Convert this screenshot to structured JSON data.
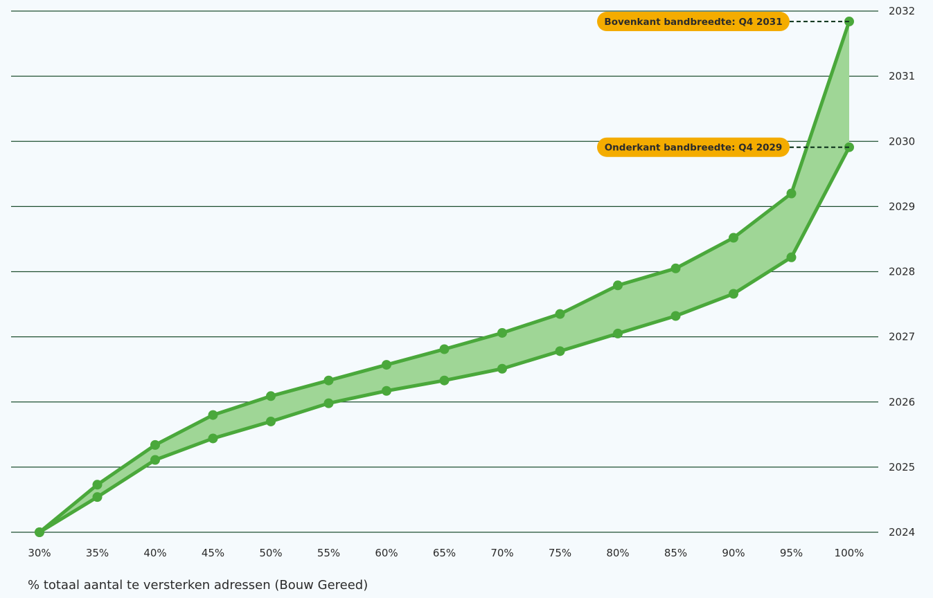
{
  "chart_data": {
    "type": "area",
    "xlabel": "% totaal aantal te versterken adressen (Bouw Gereed)",
    "ylabel": "",
    "x": [
      "30%",
      "35%",
      "40%",
      "45%",
      "50%",
      "55%",
      "60%",
      "65%",
      "70%",
      "75%",
      "80%",
      "85%",
      "90%",
      "95%",
      "100%"
    ],
    "ylim": [
      2024,
      2032
    ],
    "yticks": [
      "2024",
      "2025",
      "2026",
      "2027",
      "2028",
      "2029",
      "2030",
      "2031",
      "2032"
    ],
    "grid": "horizontal",
    "series": [
      {
        "values": [
          2024.0,
          2024.73,
          2025.34,
          2025.8,
          2026.09,
          2026.33,
          2026.57,
          2026.81,
          2027.06,
          2027.35,
          2027.79,
          2028.05,
          2028.52,
          2029.2,
          2031.84
        ]
      },
      {
        "values": [
          2024.0,
          2024.54,
          2025.11,
          2025.44,
          2025.7,
          2025.98,
          2026.17,
          2026.33,
          2026.51,
          2026.78,
          2027.05,
          2027.32,
          2027.66,
          2028.22,
          2029.91
        ]
      }
    ],
    "annotations": [
      {
        "text": "Bovenkant bandbreedte: Q4 2031",
        "y": 2031.84
      },
      {
        "text": "Onderkant bandbreedte: Q4 2029",
        "y": 2029.91
      }
    ],
    "colors": {
      "line": "#4aa83b",
      "fill": "#9fd696",
      "grid": "#1d4e2f",
      "callout": "#f4ac00",
      "leader": "#153b23"
    }
  }
}
